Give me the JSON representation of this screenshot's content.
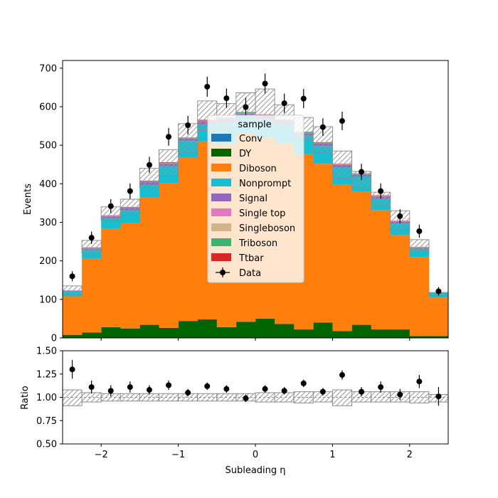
{
  "chart_data": [
    {
      "type": "bar",
      "stacked": true,
      "x_edges": [
        -2.5,
        -2.25,
        -2.0,
        -1.75,
        -1.5,
        -1.25,
        -1.0,
        -0.75,
        -0.5,
        -0.25,
        0.0,
        0.25,
        0.5,
        0.75,
        1.0,
        1.25,
        1.5,
        1.75,
        2.0,
        2.25,
        2.5
      ],
      "x_centers": [
        -2.375,
        -2.125,
        -1.875,
        -1.625,
        -1.375,
        -1.125,
        -0.875,
        -0.625,
        -0.375,
        -0.125,
        0.125,
        0.375,
        0.625,
        0.875,
        1.125,
        1.375,
        1.625,
        1.875,
        2.125,
        2.375
      ],
      "xlim": [
        -2.5,
        2.5
      ],
      "ylim": [
        0,
        720
      ],
      "ylabel": "Events",
      "y_ticks": [
        "0",
        "100",
        "200",
        "300",
        "400",
        "500",
        "600",
        "700"
      ],
      "y_tick_values": [
        0,
        100,
        200,
        300,
        400,
        500,
        600,
        700
      ],
      "legend_title": "sample",
      "legend_position": "center",
      "series": [
        {
          "name": "Conv",
          "color": "#1f77b4",
          "values": [
            0,
            0,
            0,
            0,
            0,
            0,
            0,
            0,
            0,
            0,
            0,
            0,
            0,
            0,
            0,
            0,
            0,
            0,
            0,
            0
          ]
        },
        {
          "name": "DY",
          "color": "#006400",
          "values": [
            8,
            14,
            28,
            24,
            34,
            26,
            44,
            48,
            28,
            42,
            50,
            36,
            22,
            40,
            18,
            34,
            22,
            22,
            5,
            5
          ]
        },
        {
          "name": "Diboson",
          "color": "#ff7f0e",
          "values": [
            100,
            192,
            255,
            275,
            330,
            375,
            425,
            462,
            475,
            488,
            470,
            470,
            455,
            412,
            380,
            345,
            310,
            245,
            205,
            100
          ]
        },
        {
          "name": "Nonprompt",
          "color": "#17becf",
          "values": [
            13,
            23,
            28,
            32,
            33,
            45,
            42,
            44,
            57,
            46,
            48,
            50,
            48,
            46,
            45,
            40,
            30,
            30,
            20,
            12
          ]
        },
        {
          "name": "Signal",
          "color": "#9467bd",
          "values": [
            2,
            3,
            4,
            6,
            8,
            6,
            6,
            8,
            8,
            6,
            8,
            6,
            6,
            6,
            6,
            5,
            5,
            4,
            3,
            1
          ]
        },
        {
          "name": "Single top",
          "color": "#e377c2",
          "values": [
            0,
            1,
            1,
            1,
            1,
            1,
            1,
            1,
            1,
            1,
            1,
            1,
            1,
            1,
            1,
            1,
            1,
            1,
            1,
            0
          ]
        },
        {
          "name": "Singleboson",
          "color": "#d2b48c",
          "values": [
            0,
            0,
            0,
            0,
            0,
            0,
            0,
            0,
            0,
            0,
            0,
            0,
            0,
            0,
            0,
            0,
            0,
            0,
            0,
            0
          ]
        },
        {
          "name": "Triboson",
          "color": "#3cb371",
          "values": [
            0,
            1,
            1,
            1,
            1,
            2,
            1,
            2,
            2,
            2,
            2,
            2,
            2,
            2,
            1,
            1,
            1,
            1,
            1,
            0
          ]
        },
        {
          "name": "Ttbar",
          "color": "#d62728",
          "values": [
            0,
            1,
            1,
            1,
            1,
            1,
            1,
            1,
            1,
            1,
            1,
            1,
            1,
            1,
            1,
            1,
            1,
            1,
            1,
            0
          ]
        }
      ],
      "uncertainty": {
        "down": [
          113,
          220,
          305,
          320,
          390,
          420,
          480,
          540,
          545,
          560,
          555,
          550,
          515,
          480,
          415,
          390,
          345,
          280,
          225,
          110
        ],
        "up": [
          135,
          253,
          340,
          360,
          440,
          488,
          556,
          615,
          608,
          636,
          646,
          605,
          572,
          548,
          485,
          432,
          378,
          330,
          255,
          118
        ]
      },
      "data": {
        "name": "Data",
        "y": [
          160,
          260,
          342,
          381,
          449,
          522,
          552,
          652,
          622,
          599,
          660,
          609,
          621,
          547,
          563,
          431,
          381,
          316,
          277,
          121
        ],
        "yerr": [
          13,
          16,
          18,
          20,
          21,
          23,
          24,
          26,
          25,
          24,
          26,
          25,
          25,
          23,
          24,
          21,
          20,
          18,
          17,
          11
        ]
      }
    },
    {
      "type": "scatter",
      "xlim": [
        -2.5,
        2.5
      ],
      "ylim": [
        0.5,
        1.5
      ],
      "xlabel": "Subleading η",
      "ylabel": "Ratio",
      "x_ticks": [
        "−2",
        "−1",
        "0",
        "1",
        "2"
      ],
      "x_tick_values": [
        -2,
        -1,
        0,
        1,
        2
      ],
      "y_ticks": [
        "0.50",
        "0.75",
        "1.00",
        "1.25",
        "1.50"
      ],
      "y_tick_values": [
        0.5,
        0.75,
        1.0,
        1.25,
        1.5
      ],
      "reference_line": 1.0,
      "band_down": [
        0.91,
        0.95,
        0.96,
        0.96,
        0.96,
        0.96,
        0.96,
        0.96,
        0.96,
        0.96,
        0.95,
        0.95,
        0.94,
        0.95,
        0.91,
        0.95,
        0.95,
        0.95,
        0.94,
        0.95
      ],
      "band_up": [
        1.08,
        1.05,
        1.04,
        1.04,
        1.04,
        1.04,
        1.04,
        1.04,
        1.04,
        1.04,
        1.05,
        1.05,
        1.06,
        1.06,
        1.08,
        1.06,
        1.06,
        1.06,
        1.06,
        1.03
      ],
      "y": [
        1.3,
        1.11,
        1.07,
        1.11,
        1.08,
        1.13,
        1.05,
        1.12,
        1.09,
        0.99,
        1.09,
        1.07,
        1.15,
        1.06,
        1.24,
        1.06,
        1.11,
        1.03,
        1.17,
        1.01
      ],
      "yerr": [
        0.1,
        0.07,
        0.06,
        0.06,
        0.05,
        0.05,
        0.04,
        0.04,
        0.04,
        0.04,
        0.04,
        0.04,
        0.04,
        0.04,
        0.05,
        0.05,
        0.06,
        0.06,
        0.07,
        0.1
      ]
    }
  ]
}
